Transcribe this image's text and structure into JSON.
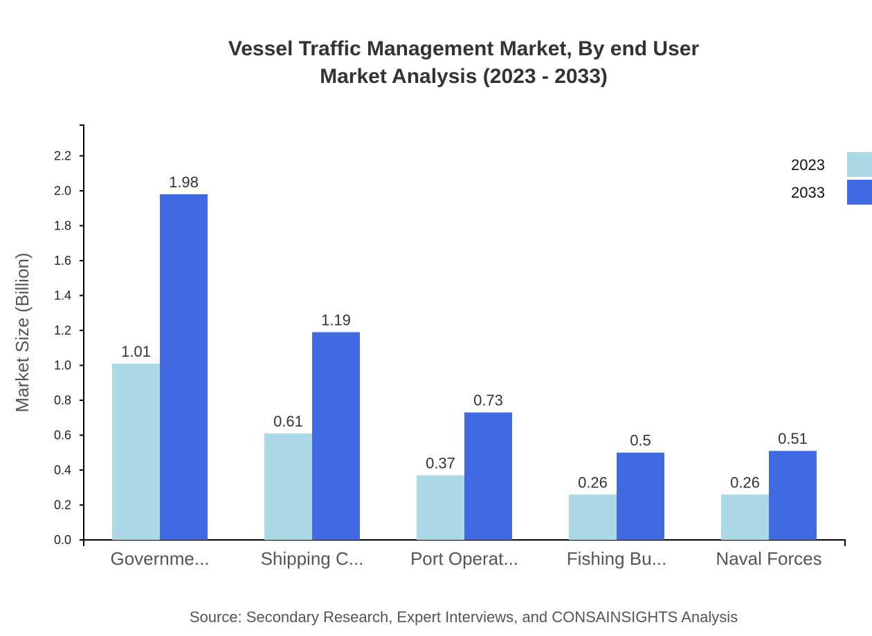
{
  "chart_data": {
    "type": "bar",
    "title": "Vessel Traffic Management Market, By end User",
    "subtitle": "Market Analysis (2023 - 2033)",
    "ylabel": "Market Size (Billion)",
    "xlabel": "",
    "ylim": [
      0,
      2.376
    ],
    "yticks": [
      "0.0",
      "0.2",
      "0.4",
      "0.6",
      "0.8",
      "1.0",
      "1.2",
      "1.4",
      "1.6",
      "1.8",
      "2.0",
      "2.2"
    ],
    "categories": [
      "Governme...",
      "Shipping C...",
      "Port Operat...",
      "Fishing Bu...",
      "Naval Forces"
    ],
    "series": [
      {
        "name": "2023",
        "color": "#add8e6",
        "values": [
          1.01,
          0.61,
          0.37,
          0.26,
          0.26
        ],
        "labels": [
          "1.01",
          "0.61",
          "0.37",
          "0.26",
          "0.26"
        ]
      },
      {
        "name": "2033",
        "color": "#4169e1",
        "values": [
          1.98,
          1.19,
          0.73,
          0.5,
          0.51
        ],
        "labels": [
          "1.98",
          "1.19",
          "0.73",
          "0.5",
          "0.51"
        ]
      }
    ],
    "legend_position": "top-right",
    "grid": false
  },
  "source": "Source: Secondary Research, Expert Interviews, and CONSAINSIGHTS Analysis"
}
